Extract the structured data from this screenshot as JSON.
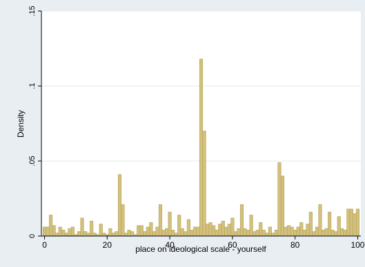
{
  "chart_data": {
    "type": "bar",
    "title": "",
    "xlabel": "place on ideological scale - yourself",
    "ylabel": "Density",
    "xlim": [
      -1,
      101
    ],
    "ylim": [
      0,
      0.15
    ],
    "x_ticks": [
      0,
      20,
      40,
      60,
      80,
      100
    ],
    "x_tick_labels": [
      "0",
      "20",
      "40",
      "60",
      "80",
      "100"
    ],
    "y_ticks": [
      0,
      0.05,
      0.1,
      0.15
    ],
    "y_tick_labels": [
      "0",
      ".05",
      ".1",
      ".15"
    ],
    "grid": true,
    "legend": "none",
    "bar_width": 1,
    "colors": {
      "bar_fill": "#d2c07c",
      "bar_stroke": "#b5a259",
      "plot_background": "#ffffff",
      "outer_background": "#e9eef3",
      "grid": "#e2e8ee"
    },
    "x": [
      0,
      1,
      2,
      3,
      4,
      5,
      6,
      7,
      8,
      9,
      10,
      11,
      12,
      13,
      14,
      15,
      16,
      17,
      18,
      19,
      20,
      21,
      22,
      23,
      24,
      25,
      26,
      27,
      28,
      29,
      30,
      31,
      32,
      33,
      34,
      35,
      36,
      37,
      38,
      39,
      40,
      41,
      42,
      43,
      44,
      45,
      46,
      47,
      48,
      49,
      50,
      51,
      52,
      53,
      54,
      55,
      56,
      57,
      58,
      59,
      60,
      61,
      62,
      63,
      64,
      65,
      66,
      67,
      68,
      69,
      70,
      71,
      72,
      73,
      74,
      75,
      76,
      77,
      78,
      79,
      80,
      81,
      82,
      83,
      84,
      85,
      86,
      87,
      88,
      89,
      90,
      91,
      92,
      93,
      94,
      95,
      96,
      97,
      98,
      99,
      100
    ],
    "values": [
      0.006,
      0.006,
      0.014,
      0.007,
      0.002,
      0.006,
      0.004,
      0.002,
      0.005,
      0.006,
      0.001,
      0.003,
      0.012,
      0.003,
      0.002,
      0.01,
      0.002,
      0.001,
      0.008,
      0.002,
      0.001,
      0.005,
      0.002,
      0.003,
      0.041,
      0.021,
      0.002,
      0.004,
      0.003,
      0.001,
      0.007,
      0.007,
      0.003,
      0.006,
      0.009,
      0.003,
      0.006,
      0.021,
      0.004,
      0.005,
      0.016,
      0.004,
      0.002,
      0.014,
      0.005,
      0.003,
      0.011,
      0.004,
      0.006,
      0.006,
      0.118,
      0.07,
      0.008,
      0.009,
      0.007,
      0.004,
      0.008,
      0.01,
      0.006,
      0.008,
      0.012,
      0.003,
      0.005,
      0.021,
      0.005,
      0.004,
      0.014,
      0.003,
      0.004,
      0.009,
      0.004,
      0.002,
      0.006,
      0.002,
      0.004,
      0.049,
      0.04,
      0.006,
      0.007,
      0.006,
      0.004,
      0.006,
      0.009,
      0.004,
      0.008,
      0.016,
      0.003,
      0.006,
      0.021,
      0.004,
      0.005,
      0.016,
      0.004,
      0.003,
      0.013,
      0.005,
      0.004,
      0.018,
      0.018,
      0.015,
      0.018
    ]
  }
}
